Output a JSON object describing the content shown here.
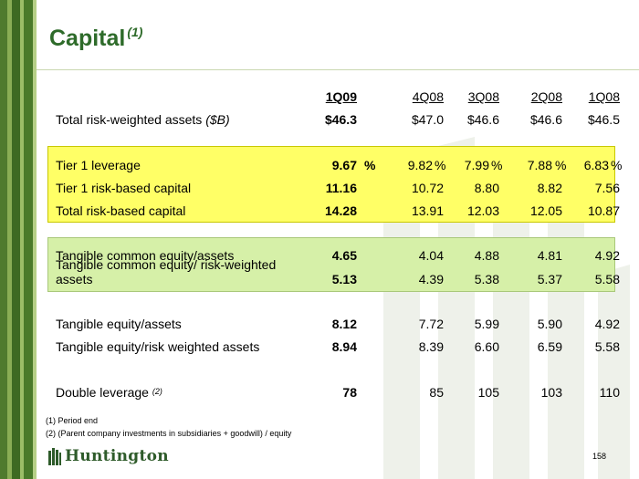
{
  "slide": {
    "title": "Capital",
    "title_note": "(1)",
    "page_number": "158"
  },
  "table": {
    "headers": [
      "1Q09",
      "4Q08",
      "3Q08",
      "2Q08",
      "1Q08"
    ],
    "rows": [
      {
        "label": "Total risk-weighted assets ",
        "label_em": "($B)",
        "values": [
          "$46.3",
          "$47.0",
          "$46.6",
          "$46.6",
          "$46.5"
        ]
      },
      {
        "label": "Tier 1 leverage",
        "values": [
          "9.67",
          "9.82",
          "7.99",
          "7.88",
          "6.83"
        ],
        "pct": [
          "%",
          "%",
          "%",
          "%",
          "%"
        ]
      },
      {
        "label": "Tier 1 risk-based capital",
        "values": [
          "11.16",
          "10.72",
          "8.80",
          "8.82",
          "7.56"
        ]
      },
      {
        "label": "Total risk-based capital",
        "values": [
          "14.28",
          "13.91",
          "12.03",
          "12.05",
          "10.87"
        ]
      },
      {
        "label": "Tangible common equity/assets",
        "values": [
          "4.65",
          "4.04",
          "4.88",
          "4.81",
          "4.92"
        ]
      },
      {
        "label": "Tangible common equity/ risk-weighted",
        "label_line2": "assets",
        "values": [
          "5.13",
          "4.39",
          "5.38",
          "5.37",
          "5.58"
        ]
      },
      {
        "label": "Tangible equity/assets",
        "values": [
          "8.12",
          "7.72",
          "5.99",
          "5.90",
          "4.92"
        ]
      },
      {
        "label": "Tangible equity/risk weighted  assets",
        "values": [
          "8.94",
          "8.39",
          "6.60",
          "6.59",
          "5.58"
        ]
      },
      {
        "label": "Double leverage ",
        "label_note": "(2)",
        "values": [
          "78",
          "85",
          "105",
          "103",
          "110"
        ]
      }
    ]
  },
  "footnotes": [
    "(1)    Period end",
    "(2)   (Parent company investments in subsidiaries + goodwill) / equity"
  ],
  "logo": {
    "text": "Huntington",
    "icon": "huntington-logo-icon"
  },
  "colors": {
    "title": "#2e6b2a",
    "highlight_yellow": "#ffff66",
    "highlight_green": "#d6f0a8",
    "stripe": "#4f7a2e"
  }
}
